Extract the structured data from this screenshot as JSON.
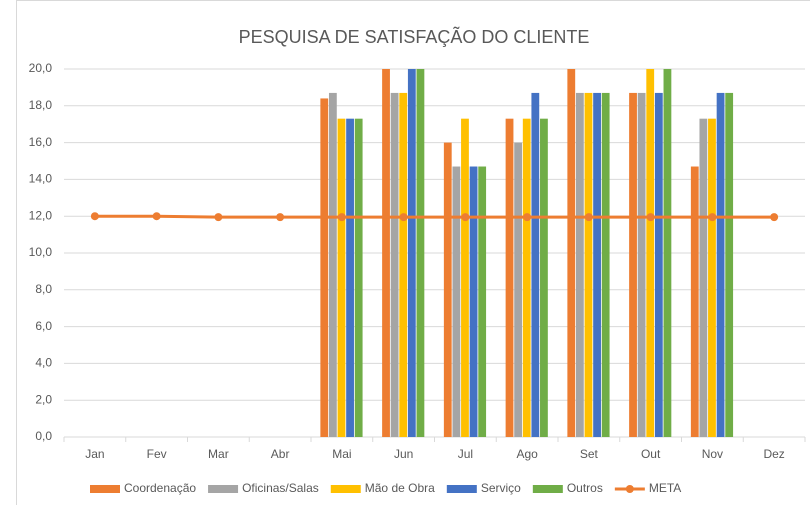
{
  "chart_data": {
    "type": "bar_line",
    "title": "PESQUISA DE SATISFAÇÃO DO CLIENTE",
    "categories": [
      "Jan",
      "Fev",
      "Mar",
      "Abr",
      "Mai",
      "Jun",
      "Jul",
      "Ago",
      "Set",
      "Out",
      "Nov",
      "Dez"
    ],
    "series": [
      {
        "name": "Coordenação",
        "color": "#ED7D31",
        "type": "bar",
        "values": [
          null,
          null,
          null,
          null,
          18.4,
          20,
          16,
          17.3,
          20,
          18.7,
          14.7,
          null
        ]
      },
      {
        "name": "Oficinas/Salas",
        "color": "#A5A5A5",
        "type": "bar",
        "values": [
          null,
          null,
          null,
          null,
          18.7,
          18.7,
          14.7,
          16,
          18.7,
          18.7,
          17.3,
          null
        ]
      },
      {
        "name": "Mão de Obra",
        "color": "#FFC000",
        "type": "bar",
        "values": [
          null,
          null,
          null,
          null,
          17.3,
          18.7,
          17.3,
          17.3,
          18.7,
          20,
          17.3,
          null
        ]
      },
      {
        "name": "Serviço",
        "color": "#4472C4",
        "type": "bar",
        "values": [
          null,
          null,
          null,
          null,
          17.3,
          20,
          14.7,
          18.7,
          18.7,
          18.7,
          18.7,
          null
        ]
      },
      {
        "name": "Outros",
        "color": "#70AD47",
        "type": "bar",
        "values": [
          null,
          null,
          null,
          null,
          17.3,
          20,
          14.7,
          17.3,
          18.7,
          20,
          18.7,
          null
        ]
      },
      {
        "name": "META",
        "color": "#ED7D31",
        "type": "line",
        "values": [
          12,
          12,
          11.95,
          11.95,
          11.95,
          11.95,
          11.95,
          11.95,
          11.95,
          11.95,
          11.95,
          11.95
        ]
      }
    ],
    "ylim": [
      0,
      20
    ],
    "yticks": [
      {
        "value": 0,
        "label": "0,0"
      },
      {
        "value": 2,
        "label": "2,0"
      },
      {
        "value": 4,
        "label": "4,0"
      },
      {
        "value": 6,
        "label": "6,0"
      },
      {
        "value": 8,
        "label": "8,0"
      },
      {
        "value": 10,
        "label": "10,0"
      },
      {
        "value": 12,
        "label": "12,0"
      },
      {
        "value": 14,
        "label": "14,0"
      },
      {
        "value": 16,
        "label": "16,0"
      },
      {
        "value": 18,
        "label": "18,0"
      },
      {
        "value": 20,
        "label": "20,0"
      }
    ],
    "grid": true,
    "legend": "bottom"
  }
}
